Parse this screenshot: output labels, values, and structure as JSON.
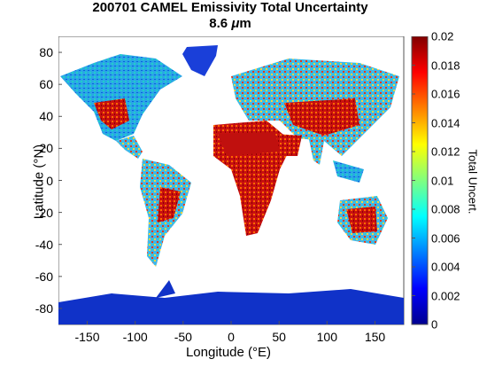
{
  "title": "200701 CAMEL Emissivity Total Uncertainty",
  "subtitle_prefix": "8.6 ",
  "subtitle_mu": "μ",
  "subtitle_suffix": "m",
  "x_axis": {
    "label": "Longitude (°E)",
    "ticks": [
      "-150",
      "-100",
      "-50",
      "0",
      "50",
      "100",
      "150"
    ],
    "values": [
      -150,
      -100,
      -50,
      0,
      50,
      100,
      150
    ],
    "range": [
      -180,
      180
    ]
  },
  "y_axis": {
    "label": "Latitude (°N)",
    "ticks": [
      "80",
      "60",
      "40",
      "20",
      "0",
      "-20",
      "-40",
      "-60",
      "-80"
    ],
    "values": [
      80,
      60,
      40,
      20,
      0,
      -20,
      -40,
      -60,
      -80
    ],
    "range": [
      -90,
      90
    ]
  },
  "colorbar": {
    "label": "Total Uncert.",
    "ticks": [
      "0.02",
      "0.018",
      "0.016",
      "0.014",
      "0.012",
      "0.01",
      "0.008",
      "0.006",
      "0.004",
      "0.002",
      "0"
    ],
    "values": [
      0.02,
      0.018,
      0.016,
      0.014,
      0.012,
      0.01,
      0.008,
      0.006,
      0.004,
      0.002,
      0
    ],
    "range": [
      0,
      0.02
    ],
    "colormap": "jet"
  },
  "colors": {
    "ocean": "#ffffff",
    "low": "#00008f",
    "mid": "#2ec8e0",
    "high": "#c81010"
  }
}
